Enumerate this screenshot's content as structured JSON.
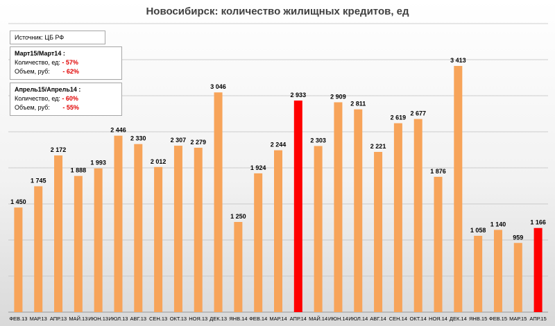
{
  "title": "Новосибирск:  количество жилищных кредитов, ед",
  "source_box": {
    "text": "Источник: ЦБ РФ"
  },
  "box_march": {
    "header": "Март15/Март14 :",
    "row1_label": "Количество, ед:",
    "row1_value": "- 57%",
    "row2_label": "Объем, руб:",
    "row2_value": "- 62%"
  },
  "box_april": {
    "header": "Апрель15/Апрель14 :",
    "row1_label": "Количество, ед:",
    "row1_value": "- 60%",
    "row2_label": "Объем, руб:",
    "row2_value": "- 55%"
  },
  "colors": {
    "bar": "#f7a45a",
    "highlight": "#ff0000",
    "grid": "#bfbfbf"
  },
  "chart_data": {
    "type": "bar",
    "title": "Новосибирск:  количество жилищных кредитов, ед",
    "categories": [
      "ФЕВ.13",
      "МАР.13",
      "АПР.13",
      "МАЙ.13",
      "ИЮН.13",
      "ИЮЛ.13",
      "АВГ.13",
      "СЕН.13",
      "ОКТ.13",
      "НОЯ.13",
      "ДЕК.13",
      "ЯНВ.14",
      "ФЕВ.14",
      "МАР.14",
      "АПР.14",
      "МАЙ.14",
      "ИЮН.14",
      "ИЮЛ.14",
      "АВГ.14",
      "СЕН.14",
      "ОКТ.14",
      "НОЯ.14",
      "ДЕК.14",
      "ЯНВ.15",
      "ФЕВ.15",
      "МАР.15",
      "АПР.15"
    ],
    "values": [
      1450,
      1745,
      2172,
      1888,
      1993,
      2446,
      2330,
      2012,
      2307,
      2279,
      3046,
      1250,
      1924,
      2244,
      2933,
      2303,
      2909,
      2811,
      2221,
      2619,
      2677,
      1876,
      3413,
      1058,
      1140,
      959,
      1166
    ],
    "value_labels": [
      "1 450",
      "1 745",
      "2 172",
      "1 888",
      "1 993",
      "2 446",
      "2 330",
      "2 012",
      "2 307",
      "2 279",
      "3 046",
      "1 250",
      "1 924",
      "2 244",
      "2 933",
      "2 303",
      "2 909",
      "2 811",
      "2 221",
      "2 619",
      "2 677",
      "1 876",
      "3 413",
      "1 058",
      "1 140",
      "959",
      "1 166"
    ],
    "highlighted": [
      "АПР.14",
      "АПР.15"
    ],
    "ylim": [
      0,
      4000
    ],
    "grid": true,
    "xlabel": "",
    "ylabel": ""
  }
}
